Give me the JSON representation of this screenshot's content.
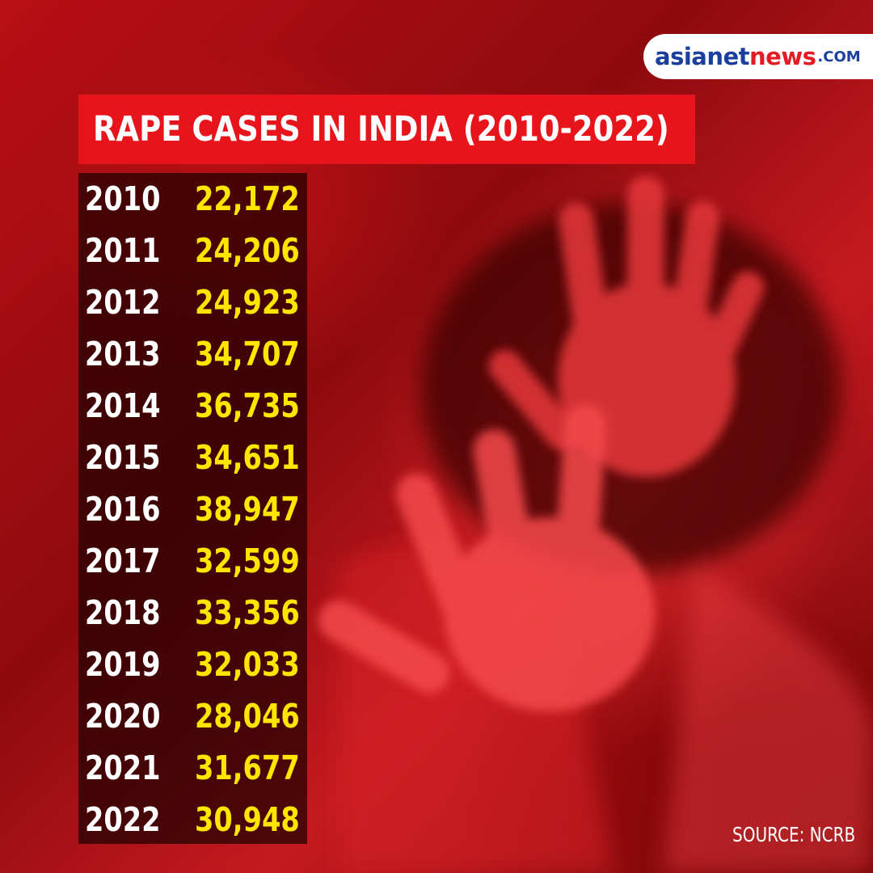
{
  "logo": {
    "part1": "asianet",
    "part2": "news",
    "part3": ".COM"
  },
  "title": "RAPE CASES IN INDIA (2010-2022)",
  "rows": [
    {
      "year": "2010",
      "cases": "22,172"
    },
    {
      "year": "2011",
      "cases": "24,206"
    },
    {
      "year": "2012",
      "cases": "24,923"
    },
    {
      "year": "2013",
      "cases": "34,707"
    },
    {
      "year": "2014",
      "cases": "36,735"
    },
    {
      "year": "2015",
      "cases": "34,651"
    },
    {
      "year": "2016",
      "cases": "38,947"
    },
    {
      "year": "2017",
      "cases": "32,599"
    },
    {
      "year": "2018",
      "cases": "33,356"
    },
    {
      "year": "2019",
      "cases": "32,033"
    },
    {
      "year": "2020",
      "cases": "28,046"
    },
    {
      "year": "2021",
      "cases": "31,677"
    },
    {
      "year": "2022",
      "cases": "30,948"
    }
  ],
  "source": "SOURCE: NCRB",
  "colors": {
    "title_bg": "#e8141b",
    "year_text": "#ffffff",
    "value_text": "#ffe600",
    "logo_blue": "#1a3f9c",
    "logo_red": "#e31b23"
  }
}
